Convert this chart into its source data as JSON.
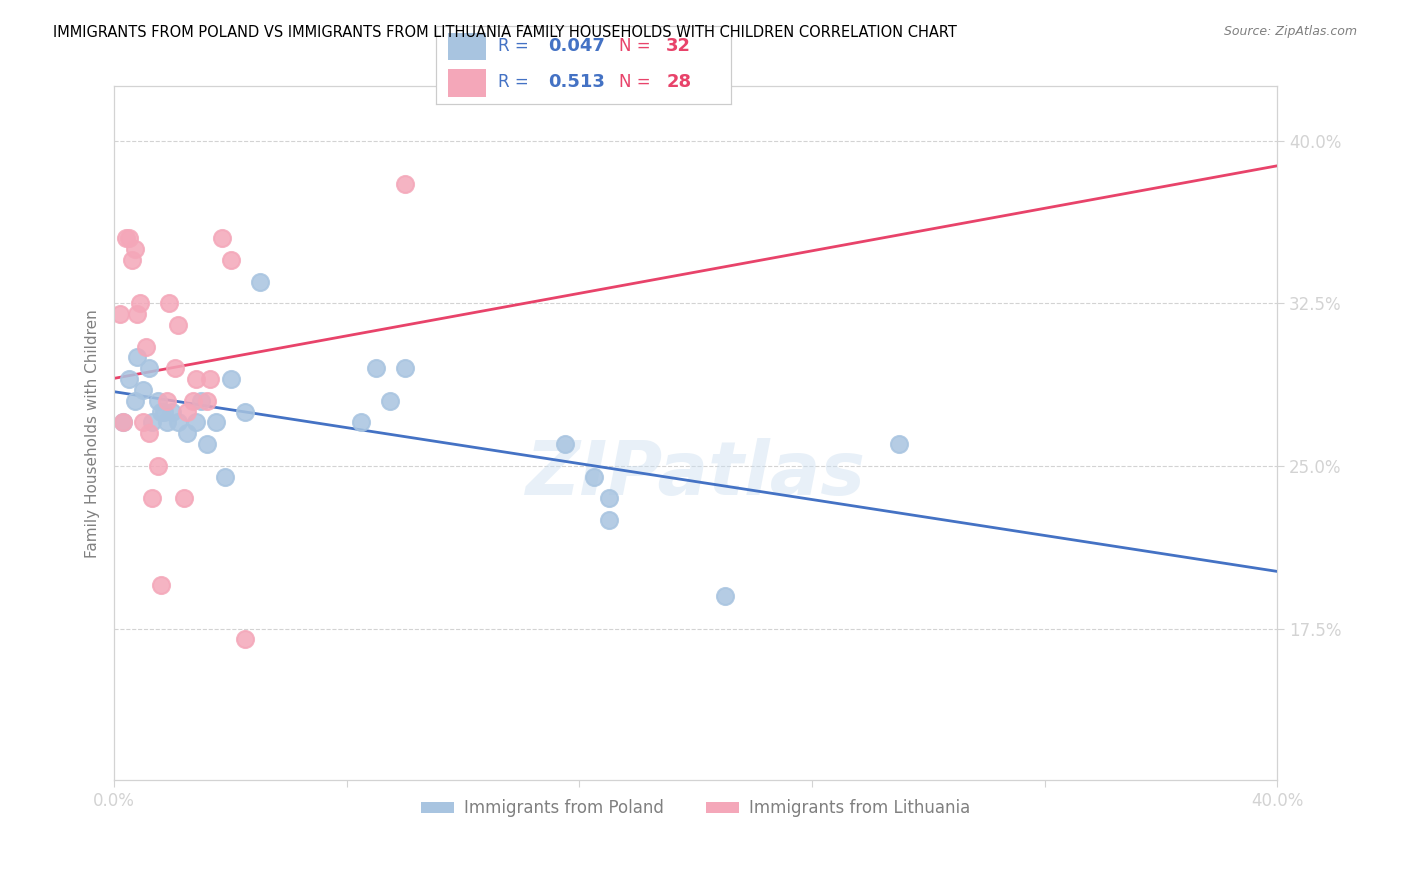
{
  "title": "IMMIGRANTS FROM POLAND VS IMMIGRANTS FROM LITHUANIA FAMILY HOUSEHOLDS WITH CHILDREN CORRELATION CHART",
  "source": "Source: ZipAtlas.com",
  "ylabel": "Family Households with Children",
  "xlim": [
    0.0,
    0.4
  ],
  "ylim": [
    0.105,
    0.425
  ],
  "poland_color": "#a8c4e0",
  "poland_line_color": "#4472c4",
  "lithuania_color": "#f4a7b9",
  "lithuania_line_color": "#e8436a",
  "poland_R": 0.047,
  "poland_N": 32,
  "lithuania_R": 0.513,
  "lithuania_N": 28,
  "watermark": "ZIPatlas",
  "poland_x": [
    0.003,
    0.005,
    0.007,
    0.008,
    0.01,
    0.012,
    0.013,
    0.015,
    0.016,
    0.017,
    0.018,
    0.02,
    0.022,
    0.025,
    0.028,
    0.03,
    0.032,
    0.035,
    0.038,
    0.04,
    0.045,
    0.05,
    0.085,
    0.09,
    0.095,
    0.1,
    0.155,
    0.165,
    0.17,
    0.17,
    0.21,
    0.27
  ],
  "poland_y": [
    0.27,
    0.29,
    0.28,
    0.3,
    0.285,
    0.295,
    0.27,
    0.28,
    0.275,
    0.275,
    0.27,
    0.275,
    0.27,
    0.265,
    0.27,
    0.28,
    0.26,
    0.27,
    0.245,
    0.29,
    0.275,
    0.335,
    0.27,
    0.295,
    0.28,
    0.295,
    0.26,
    0.245,
    0.235,
    0.225,
    0.19,
    0.26
  ],
  "lithuania_x": [
    0.002,
    0.003,
    0.004,
    0.005,
    0.006,
    0.007,
    0.008,
    0.009,
    0.01,
    0.011,
    0.012,
    0.013,
    0.015,
    0.016,
    0.018,
    0.019,
    0.021,
    0.022,
    0.024,
    0.025,
    0.027,
    0.028,
    0.032,
    0.033,
    0.037,
    0.04,
    0.045,
    0.1
  ],
  "lithuania_y": [
    0.32,
    0.27,
    0.355,
    0.355,
    0.345,
    0.35,
    0.32,
    0.325,
    0.27,
    0.305,
    0.265,
    0.235,
    0.25,
    0.195,
    0.28,
    0.325,
    0.295,
    0.315,
    0.235,
    0.275,
    0.28,
    0.29,
    0.28,
    0.29,
    0.355,
    0.345,
    0.17,
    0.38
  ]
}
